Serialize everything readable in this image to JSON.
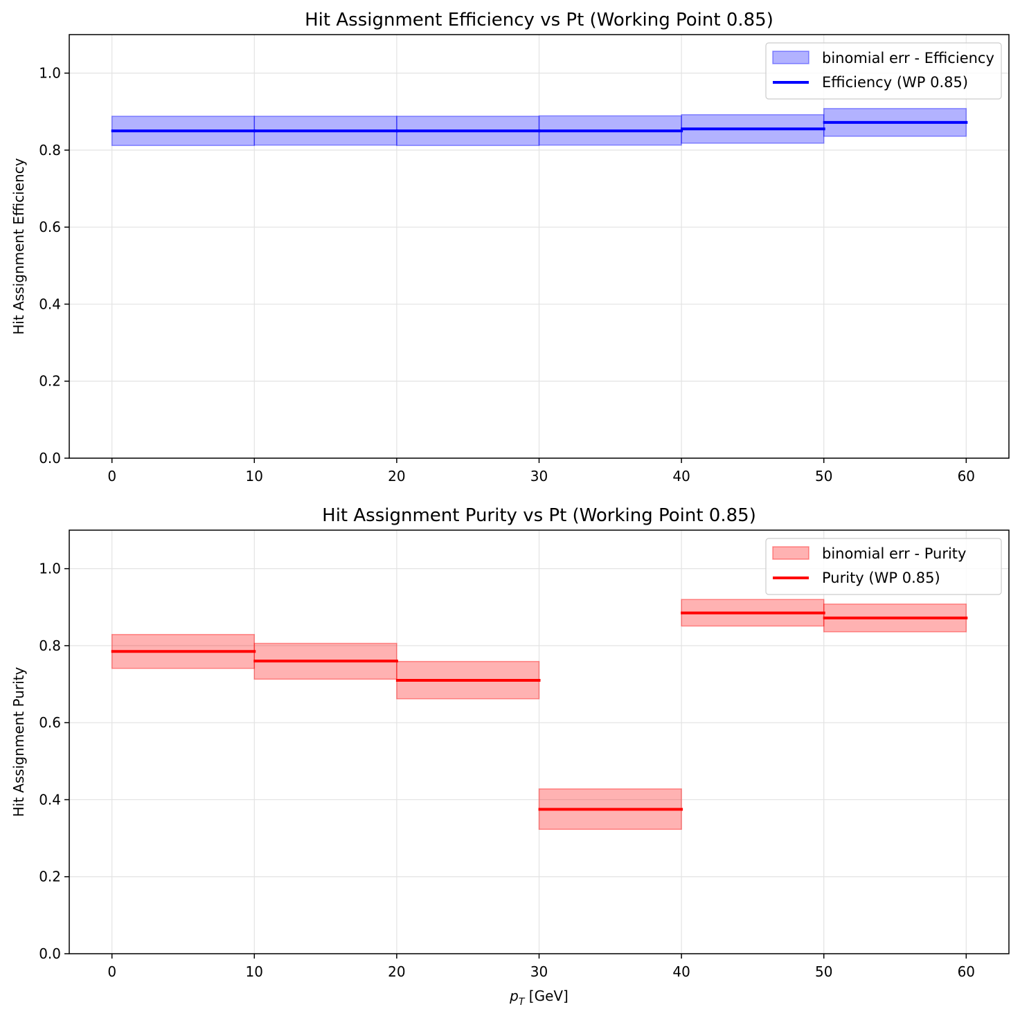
{
  "chart_data": [
    {
      "type": "line",
      "title": "Hit Assignment Efficiency vs Pt (Working Point 0.85)",
      "xlabel": "",
      "ylabel": "Hit Assignment Efficiency",
      "xlim": [
        -3,
        63
      ],
      "ylim": [
        0,
        1.1
      ],
      "xticks": [
        0,
        10,
        20,
        30,
        40,
        50,
        60
      ],
      "yticks": [
        0.0,
        0.2,
        0.4,
        0.6,
        0.8,
        1.0
      ],
      "grid": true,
      "legend_position": "top-right",
      "bins": [
        [
          0,
          10
        ],
        [
          10,
          20
        ],
        [
          20,
          30
        ],
        [
          30,
          40
        ],
        [
          40,
          50
        ],
        [
          50,
          60
        ]
      ],
      "series": [
        {
          "name": "Efficiency (WP 0.85)",
          "kind": "step",
          "color": "#0000ff",
          "values": [
            0.85,
            0.85,
            0.85,
            0.85,
            0.855,
            0.872
          ]
        },
        {
          "name": "binomial err - Efficiency",
          "kind": "band",
          "color": "#0000ff",
          "lower": [
            0.812,
            0.813,
            0.812,
            0.813,
            0.818,
            0.836
          ],
          "upper": [
            0.888,
            0.888,
            0.888,
            0.889,
            0.892,
            0.908
          ]
        }
      ]
    },
    {
      "type": "line",
      "title": "Hit Assignment Purity vs Pt (Working Point 0.85)",
      "xlabel": "p_T [GeV]",
      "ylabel": "Hit Assignment Purity",
      "xlim": [
        -3,
        63
      ],
      "ylim": [
        0,
        1.1
      ],
      "xticks": [
        0,
        10,
        20,
        30,
        40,
        50,
        60
      ],
      "yticks": [
        0.0,
        0.2,
        0.4,
        0.6,
        0.8,
        1.0
      ],
      "grid": true,
      "legend_position": "top-right",
      "bins": [
        [
          0,
          10
        ],
        [
          10,
          20
        ],
        [
          20,
          30
        ],
        [
          30,
          40
        ],
        [
          40,
          50
        ],
        [
          50,
          60
        ]
      ],
      "series": [
        {
          "name": "Purity (WP 0.85)",
          "kind": "step",
          "color": "#ff0000",
          "values": [
            0.785,
            0.76,
            0.71,
            0.375,
            0.885,
            0.872
          ]
        },
        {
          "name": "binomial err - Purity",
          "kind": "band",
          "color": "#ff0000",
          "lower": [
            0.741,
            0.713,
            0.662,
            0.323,
            0.851,
            0.836
          ],
          "upper": [
            0.829,
            0.806,
            0.759,
            0.428,
            0.92,
            0.908
          ]
        }
      ]
    }
  ]
}
